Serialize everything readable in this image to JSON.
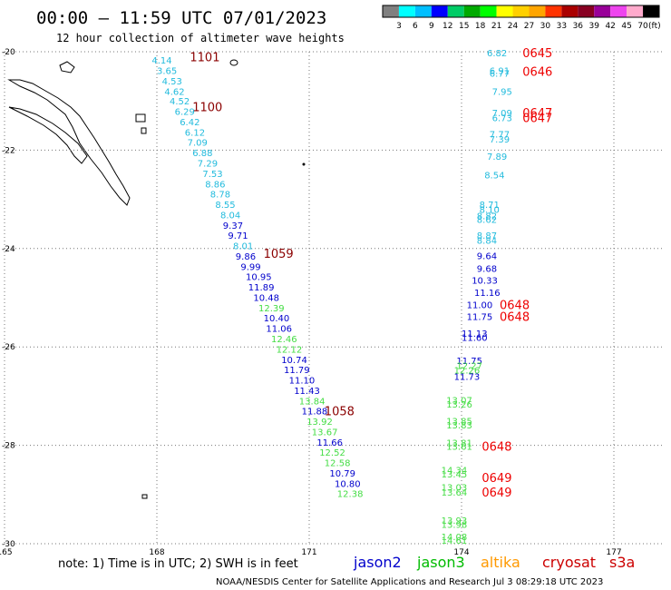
{
  "chart_data": {
    "type": "scatter",
    "title": "00:00 — 11:59 UTC 07/01/2023",
    "subtitle": "12 hour collection of altimeter wave heights",
    "xlim": [
      165,
      178
    ],
    "ylim": [
      -30,
      -20
    ],
    "x_ticks": [
      {
        "value": 165,
        "label": "165"
      },
      {
        "value": 168,
        "label": "168"
      },
      {
        "value": 171,
        "label": "171"
      },
      {
        "value": 174,
        "label": "174"
      },
      {
        "value": 177,
        "label": "177"
      }
    ],
    "y_ticks": [
      {
        "value": -20,
        "label": "-20"
      },
      {
        "value": -22,
        "label": "-22"
      },
      {
        "value": -24,
        "label": "-24"
      },
      {
        "value": -26,
        "label": "-26"
      },
      {
        "value": -28,
        "label": "-28"
      },
      {
        "value": -30,
        "label": "-30"
      }
    ],
    "grid": true,
    "legend_placement": "bottom",
    "color_scale": {
      "unit": "(ft)",
      "labels": [
        "3",
        "6",
        "9",
        "12",
        "15",
        "18",
        "21",
        "24",
        "27",
        "30",
        "33",
        "36",
        "39",
        "42",
        "45",
        "70"
      ],
      "colors": [
        "#808080",
        "#00ffff",
        "#00bfff",
        "#0000ff",
        "#00cc66",
        "#00aa00",
        "#00ff00",
        "#ffff00",
        "#ffd000",
        "#ffa500",
        "#ff3300",
        "#aa0000",
        "#880022",
        "#990099",
        "#ee44ee",
        "#ffaacc",
        "#000000"
      ]
    },
    "series": [
      {
        "name": "jason2",
        "color": "#0000cc"
      },
      {
        "name": "jason3",
        "color": "#00bb00"
      },
      {
        "name": "altika",
        "color": "#ff9900"
      },
      {
        "name": "cryosat",
        "color": "#cc0000"
      },
      {
        "name": "s3a",
        "color": "#cc0000"
      }
    ],
    "points": [
      {
        "x": 167.9,
        "y": -20.17,
        "v": "4.14",
        "c": "#22bbdd"
      },
      {
        "x": 168.0,
        "y": -20.38,
        "v": "3.65",
        "c": "#22bbdd"
      },
      {
        "x": 168.1,
        "y": -20.59,
        "v": "4.53",
        "c": "#22bbdd"
      },
      {
        "x": 168.15,
        "y": -20.8,
        "v": "4.62",
        "c": "#22bbdd"
      },
      {
        "x": 168.25,
        "y": -21.0,
        "v": "4.52",
        "c": "#22bbdd"
      },
      {
        "x": 168.35,
        "y": -21.21,
        "v": "6.29",
        "c": "#22bbdd"
      },
      {
        "x": 168.45,
        "y": -21.42,
        "v": "6.42",
        "c": "#22bbdd"
      },
      {
        "x": 168.55,
        "y": -21.63,
        "v": "6.12",
        "c": "#22bbdd"
      },
      {
        "x": 168.6,
        "y": -21.84,
        "v": "7.09",
        "c": "#22bbdd"
      },
      {
        "x": 168.7,
        "y": -22.05,
        "v": "6.88",
        "c": "#22bbdd"
      },
      {
        "x": 168.8,
        "y": -22.26,
        "v": "7.29",
        "c": "#22bbdd"
      },
      {
        "x": 168.9,
        "y": -22.47,
        "v": "7.53",
        "c": "#22bbdd"
      },
      {
        "x": 168.95,
        "y": -22.68,
        "v": "8.86",
        "c": "#22bbdd"
      },
      {
        "x": 169.05,
        "y": -22.89,
        "v": "8.78",
        "c": "#22bbdd"
      },
      {
        "x": 169.15,
        "y": -23.1,
        "v": "8.55",
        "c": "#22bbdd"
      },
      {
        "x": 169.25,
        "y": -23.31,
        "v": "8.04",
        "c": "#22bbdd"
      },
      {
        "x": 169.3,
        "y": -23.52,
        "v": "9.37",
        "c": "#0000cc"
      },
      {
        "x": 169.4,
        "y": -23.73,
        "v": "9.71",
        "c": "#0000cc"
      },
      {
        "x": 169.5,
        "y": -23.94,
        "v": "8.01",
        "c": "#22bbdd"
      },
      {
        "x": 169.55,
        "y": -24.15,
        "v": "9.86",
        "c": "#0000cc"
      },
      {
        "x": 169.65,
        "y": -24.36,
        "v": "9.99",
        "c": "#0000cc"
      },
      {
        "x": 169.75,
        "y": -24.57,
        "v": "10.95",
        "c": "#0000cc"
      },
      {
        "x": 169.8,
        "y": -24.78,
        "v": "11.89",
        "c": "#0000cc"
      },
      {
        "x": 169.9,
        "y": -24.99,
        "v": "10.48",
        "c": "#0000cc"
      },
      {
        "x": 170.0,
        "y": -25.2,
        "v": "12.39",
        "c": "#44dd44"
      },
      {
        "x": 170.1,
        "y": -25.41,
        "v": "10.40",
        "c": "#0000cc"
      },
      {
        "x": 170.15,
        "y": -25.62,
        "v": "11.06",
        "c": "#0000cc"
      },
      {
        "x": 170.25,
        "y": -25.83,
        "v": "12.46",
        "c": "#44dd44"
      },
      {
        "x": 170.35,
        "y": -26.04,
        "v": "12.12",
        "c": "#44dd44"
      },
      {
        "x": 170.45,
        "y": -26.25,
        "v": "10.74",
        "c": "#0000cc"
      },
      {
        "x": 170.5,
        "y": -26.46,
        "v": "11.79",
        "c": "#0000cc"
      },
      {
        "x": 170.6,
        "y": -26.67,
        "v": "11.10",
        "c": "#0000cc"
      },
      {
        "x": 170.7,
        "y": -26.88,
        "v": "11.43",
        "c": "#0000cc"
      },
      {
        "x": 170.8,
        "y": -27.09,
        "v": "13.84",
        "c": "#44dd44"
      },
      {
        "x": 170.85,
        "y": -27.3,
        "v": "11.88",
        "c": "#0000cc"
      },
      {
        "x": 170.95,
        "y": -27.51,
        "v": "13.92",
        "c": "#44dd44"
      },
      {
        "x": 171.05,
        "y": -27.72,
        "v": "13.67",
        "c": "#44dd44"
      },
      {
        "x": 171.15,
        "y": -27.93,
        "v": "11.66",
        "c": "#0000cc"
      },
      {
        "x": 171.2,
        "y": -28.14,
        "v": "12.52",
        "c": "#44dd44"
      },
      {
        "x": 171.3,
        "y": -28.35,
        "v": "12.58",
        "c": "#44dd44"
      },
      {
        "x": 171.4,
        "y": -28.56,
        "v": "10.79",
        "c": "#0000cc"
      },
      {
        "x": 171.5,
        "y": -28.77,
        "v": "10.80",
        "c": "#0000cc"
      },
      {
        "x": 171.55,
        "y": -28.98,
        "v": "12.38",
        "c": "#44dd44"
      },
      {
        "x": 174.5,
        "y": -20.02,
        "v": "6.82",
        "c": "#22bbdd"
      },
      {
        "x": 174.55,
        "y": -20.38,
        "v": "6.91",
        "c": "#22bbdd"
      },
      {
        "x": 174.55,
        "y": -20.43,
        "v": "6.77",
        "c": "#22bbdd"
      },
      {
        "x": 174.6,
        "y": -20.8,
        "v": "7.95",
        "c": "#22bbdd"
      },
      {
        "x": 174.6,
        "y": -21.24,
        "v": "7.09",
        "c": "#22bbdd"
      },
      {
        "x": 174.6,
        "y": -21.34,
        "v": "6.73",
        "c": "#22bbdd"
      },
      {
        "x": 174.55,
        "y": -21.67,
        "v": "7.77",
        "c": "#22bbdd"
      },
      {
        "x": 174.55,
        "y": -21.77,
        "v": "7.39",
        "c": "#22bbdd"
      },
      {
        "x": 174.5,
        "y": -22.12,
        "v": "7.89",
        "c": "#22bbdd"
      },
      {
        "x": 174.45,
        "y": -22.5,
        "v": "8.54",
        "c": "#22bbdd"
      },
      {
        "x": 174.35,
        "y": -23.1,
        "v": "8.71",
        "c": "#22bbdd"
      },
      {
        "x": 174.35,
        "y": -23.2,
        "v": "8.10",
        "c": "#22bbdd"
      },
      {
        "x": 174.3,
        "y": -23.33,
        "v": "8.82",
        "c": "#22bbdd"
      },
      {
        "x": 174.3,
        "y": -23.4,
        "v": "8.62",
        "c": "#22bbdd"
      },
      {
        "x": 174.3,
        "y": -23.73,
        "v": "8.87",
        "c": "#22bbdd"
      },
      {
        "x": 174.3,
        "y": -23.83,
        "v": "8.84",
        "c": "#22bbdd"
      },
      {
        "x": 174.3,
        "y": -24.14,
        "v": "9.64",
        "c": "#0000cc"
      },
      {
        "x": 174.3,
        "y": -24.4,
        "v": "9.68",
        "c": "#0000cc"
      },
      {
        "x": 174.2,
        "y": -24.64,
        "v": "10.33",
        "c": "#0000cc"
      },
      {
        "x": 174.25,
        "y": -24.89,
        "v": "11.16",
        "c": "#0000cc"
      },
      {
        "x": 174.1,
        "y": -25.14,
        "v": "11.00",
        "c": "#0000cc"
      },
      {
        "x": 174.1,
        "y": -25.38,
        "v": "11.75",
        "c": "#0000cc"
      },
      {
        "x": 174.0,
        "y": -25.72,
        "v": "11.13",
        "c": "#0000cc"
      },
      {
        "x": 174.0,
        "y": -25.8,
        "v": "11.60",
        "c": "#0000cc"
      },
      {
        "x": 173.9,
        "y": -26.27,
        "v": "11.75",
        "c": "#0000cc"
      },
      {
        "x": 173.9,
        "y": -26.37,
        "v": "12.27",
        "c": "#44dd44"
      },
      {
        "x": 173.85,
        "y": -26.47,
        "v": "12.26",
        "c": "#44dd44"
      },
      {
        "x": 173.85,
        "y": -26.6,
        "v": "11.73",
        "c": "#0000cc"
      },
      {
        "x": 173.7,
        "y": -27.08,
        "v": "13.07",
        "c": "#44dd44"
      },
      {
        "x": 173.7,
        "y": -27.16,
        "v": "13.26",
        "c": "#44dd44"
      },
      {
        "x": 173.7,
        "y": -27.5,
        "v": "13.85",
        "c": "#44dd44"
      },
      {
        "x": 173.7,
        "y": -27.58,
        "v": "13.83",
        "c": "#44dd44"
      },
      {
        "x": 173.7,
        "y": -27.94,
        "v": "13.81",
        "c": "#44dd44"
      },
      {
        "x": 173.7,
        "y": -28.02,
        "v": "13.61",
        "c": "#44dd44"
      },
      {
        "x": 173.6,
        "y": -28.5,
        "v": "14.34",
        "c": "#44dd44"
      },
      {
        "x": 173.6,
        "y": -28.58,
        "v": "13.45",
        "c": "#44dd44"
      },
      {
        "x": 173.6,
        "y": -28.85,
        "v": "13.03",
        "c": "#44dd44"
      },
      {
        "x": 173.6,
        "y": -28.95,
        "v": "13.64",
        "c": "#44dd44"
      },
      {
        "x": 173.6,
        "y": -29.52,
        "v": "13.93",
        "c": "#44dd44"
      },
      {
        "x": 173.6,
        "y": -29.6,
        "v": "13.98",
        "c": "#44dd44"
      },
      {
        "x": 173.6,
        "y": -29.85,
        "v": "14.08",
        "c": "#44dd44"
      },
      {
        "x": 173.6,
        "y": -29.93,
        "v": "14.61",
        "c": "#44dd44"
      }
    ],
    "time_labels": [
      {
        "x": 168.65,
        "y": -20.1,
        "v": "1101",
        "c": "#8b0000"
      },
      {
        "x": 168.7,
        "y": -21.12,
        "v": "1100",
        "c": "#8b0000"
      },
      {
        "x": 170.1,
        "y": -24.1,
        "v": "1059",
        "c": "#8b0000"
      },
      {
        "x": 171.3,
        "y": -27.3,
        "v": "1058",
        "c": "#8b0000"
      },
      {
        "x": 175.2,
        "y": -20.02,
        "v": "0645",
        "c": "#ee0000"
      },
      {
        "x": 175.2,
        "y": -20.4,
        "v": "0646",
        "c": "#ee0000"
      },
      {
        "x": 175.2,
        "y": -21.24,
        "v": "0647",
        "c": "#ee0000"
      },
      {
        "x": 175.2,
        "y": -21.34,
        "v": "0647",
        "c": "#ee0000"
      },
      {
        "x": 174.75,
        "y": -25.14,
        "v": "0648",
        "c": "#ee0000"
      },
      {
        "x": 174.75,
        "y": -25.38,
        "v": "0648",
        "c": "#ee0000"
      },
      {
        "x": 174.4,
        "y": -28.02,
        "v": "0648",
        "c": "#ee0000"
      },
      {
        "x": 174.4,
        "y": -28.65,
        "v": "0649",
        "c": "#ee0000"
      },
      {
        "x": 174.4,
        "y": -28.95,
        "v": "0649",
        "c": "#ee0000"
      }
    ],
    "note": "note: 1) Time is in UTC; 2) SWH is in feet",
    "footer": "NOAA/NESDIS Center for Satellite Applications and Research   Jul  3 08:29:18 UTC 2023"
  }
}
